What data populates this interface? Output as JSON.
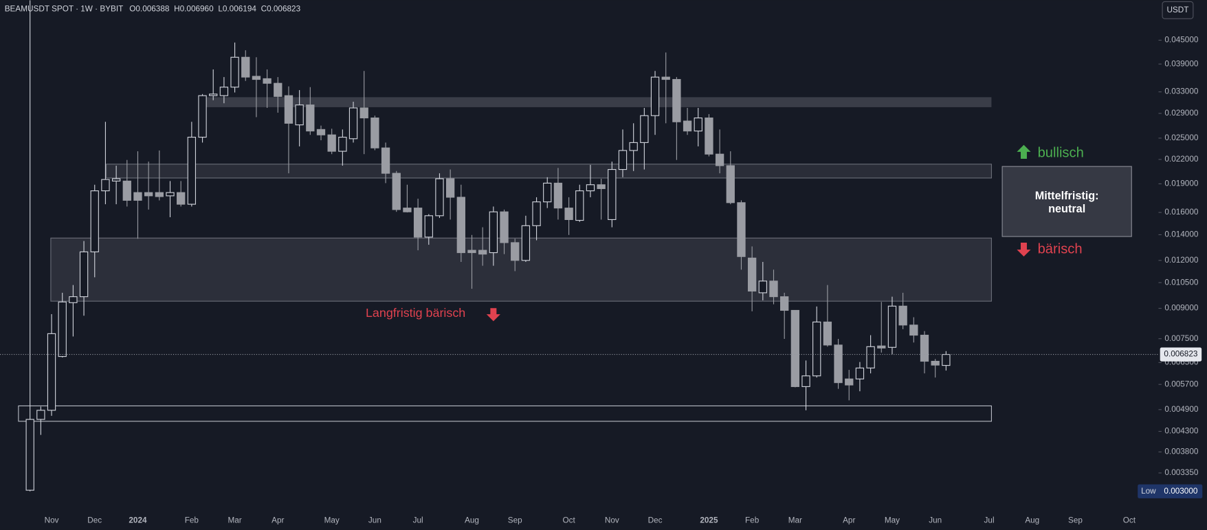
{
  "header": {
    "symbol": "BEAMUSDT SPOT · 1W · BYBIT",
    "ohlc": [
      "O0.006388",
      "H0.006960",
      "L0.006194",
      "C0.006823"
    ]
  },
  "annotations": {
    "long_term": "Langfristig bärisch",
    "bullish": "bullisch",
    "box": [
      "Mittelfristig:",
      "neutral"
    ],
    "bearish": "bärisch"
  },
  "chart_data": {
    "type": "candlestick",
    "currency": "USDT",
    "log_scale": true,
    "up_color": "#d1d4dc",
    "down_color": "#9a9ca3",
    "ylim": [
      0.002685,
      0.05722
    ],
    "yticks": [
      {
        "value": 0.045,
        "label": "0.045000"
      },
      {
        "value": 0.039,
        "label": "0.039000"
      },
      {
        "value": 0.033,
        "label": "0.033000"
      },
      {
        "value": 0.029,
        "label": "0.029000"
      },
      {
        "value": 0.025,
        "label": "0.025000"
      },
      {
        "value": 0.022,
        "label": "0.022000"
      },
      {
        "value": 0.019,
        "label": "0.019000"
      },
      {
        "value": 0.016,
        "label": "0.016000"
      },
      {
        "value": 0.014,
        "label": "0.014000"
      },
      {
        "value": 0.012,
        "label": "0.012000"
      },
      {
        "value": 0.0105,
        "label": "0.010500"
      },
      {
        "value": 0.009,
        "label": "0.009000"
      },
      {
        "value": 0.0075,
        "label": "0.007500"
      },
      {
        "value": 0.0065,
        "label": "0.006500"
      },
      {
        "value": 0.0057,
        "label": "0.005700"
      },
      {
        "value": 0.0049,
        "label": "0.004900"
      },
      {
        "value": 0.0043,
        "label": "0.004300"
      },
      {
        "value": 0.0038,
        "label": "0.003800"
      },
      {
        "value": 0.00335,
        "label": "0.003350"
      }
    ],
    "last_price": {
      "value": 0.006823,
      "label": "0.006823"
    },
    "low_marker": {
      "label": "Low",
      "value": 0.003,
      "value_label": "0.003000"
    },
    "categories": [
      null,
      null,
      "Nov",
      null,
      null,
      null,
      "Dec",
      null,
      null,
      null,
      "2024",
      null,
      null,
      null,
      null,
      "Feb",
      null,
      null,
      null,
      "Mar",
      null,
      null,
      null,
      "Apr",
      null,
      null,
      null,
      null,
      "May",
      null,
      null,
      null,
      "Jun",
      null,
      null,
      null,
      "Jul",
      null,
      null,
      null,
      null,
      "Aug",
      null,
      null,
      null,
      "Sep",
      null,
      null,
      null,
      null,
      "Oct",
      null,
      null,
      null,
      "Nov",
      null,
      null,
      null,
      "Dec",
      null,
      null,
      null,
      null,
      "2025",
      null,
      null,
      null,
      "Feb",
      null,
      null,
      null,
      "Mar",
      null,
      null,
      null,
      null,
      "Apr",
      null,
      null,
      null,
      "May",
      null,
      null,
      null,
      "Jun",
      null,
      null,
      null,
      null,
      "Jul",
      null,
      null,
      null,
      "Aug",
      null,
      null,
      null,
      "Sep",
      null,
      null,
      null,
      null,
      "Oct",
      null,
      null
    ],
    "open": [
      0.00302,
      0.00462,
      0.00488,
      0.00674,
      0.00931,
      0.00965,
      0.01263,
      0.01822,
      0.01932,
      0.01932,
      0.01803,
      0.01803,
      0.01803,
      0.01768,
      0.01803,
      0.01681,
      0.02514,
      0.03226,
      0.03226,
      0.03395,
      0.04062,
      0.03623,
      0.03572,
      0.03474,
      0.03226,
      0.02707,
      0.03051,
      0.02633,
      0.02549,
      0.0231,
      0.02491,
      0.02997,
      0.02822,
      0.02357,
      0.02024,
      0.01643,
      0.01643,
      0.0138,
      0.01569,
      0.01959,
      0.01753,
      0.01275,
      0.01275,
      0.01257,
      0.01606,
      0.01335,
      0.012,
      0.01478,
      0.01705,
      0.01908,
      0.01643,
      0.01526,
      0.01822,
      0.0189,
      0.01533,
      0.02071,
      0.02321,
      0.02434,
      0.02861,
      0.03606,
      0.03556,
      0.0277,
      0.02609,
      0.02822,
      0.02271,
      0.02119,
      0.01697,
      0.01217,
      0.00988,
      0.0106,
      0.00965,
      0.00889,
      0.005625,
      0.006,
      0.00829,
      0.00722,
      0.00589,
      0.00589,
      0.00629,
      0.00718,
      0.00712,
      0.00912,
      0.00814,
      0.00766,
      0.00655,
      0.006388,
      null,
      null,
      null,
      null,
      null,
      null,
      null,
      null,
      null,
      null,
      null,
      null,
      null,
      null,
      null,
      null,
      null,
      null,
      null
    ],
    "high": [
      0.0572,
      0.00499,
      0.00869,
      0.00988,
      0.01035,
      0.01348,
      0.0189,
      0.02757,
      0.02119,
      0.02193,
      0.0231,
      0.02171,
      0.02321,
      0.01932,
      0.01932,
      0.02757,
      0.03257,
      0.03776,
      0.03606,
      0.04438,
      0.04237,
      0.04062,
      0.03776,
      0.03606,
      0.03411,
      0.03335,
      0.03395,
      0.02695,
      0.02645,
      0.02633,
      0.0311,
      0.03741,
      0.02861,
      0.02434,
      0.02052,
      0.0189,
      0.01738,
      0.01584,
      0.02024,
      0.02071,
      0.0189,
      0.01398,
      0.01464,
      0.01658,
      0.01628,
      0.01367,
      0.01569,
      0.01753,
      0.01977,
      0.0209,
      0.01753,
      0.0189,
      0.02129,
      0.01959,
      0.02171,
      0.02633,
      0.02733,
      0.02997,
      0.03741,
      0.0418,
      0.03606,
      0.02997,
      0.02997,
      0.02887,
      0.02633,
      0.0231,
      0.01721,
      0.01305,
      0.01189,
      0.01135,
      0.00988,
      0.0089,
      0.00658,
      0.0091,
      0.01035,
      0.00749,
      0.00622,
      0.00652,
      0.00766,
      0.00935,
      0.00965,
      0.00988,
      0.00853,
      0.00785,
      0.00664,
      0.00696,
      null,
      null,
      null,
      null,
      null,
      null,
      null,
      null,
      null,
      null,
      null,
      null,
      null,
      null,
      null,
      null,
      null,
      null,
      null
    ],
    "low": [
      0.003,
      0.00421,
      0.00472,
      0.0067,
      0.0076,
      0.00861,
      0.01084,
      0.01681,
      0.01681,
      0.01658,
      0.01367,
      0.01628,
      0.0172,
      0.01555,
      0.01658,
      0.01658,
      0.02434,
      0.03139,
      0.03082,
      0.03288,
      0.03523,
      0.02835,
      0.02997,
      0.02912,
      0.02024,
      0.02379,
      0.02549,
      0.02468,
      0.02271,
      0.02119,
      0.02434,
      0.02271,
      0.02325,
      0.01908,
      0.01606,
      0.016,
      0.01275,
      0.01318,
      0.01548,
      0.01533,
      0.01189,
      0.01012,
      0.01162,
      0.01162,
      0.01246,
      0.01125,
      0.01189,
      0.01354,
      0.01643,
      0.01533,
      0.01398,
      0.01512,
      0.01753,
      0.01533,
      0.01464,
      0.01977,
      0.02052,
      0.02071,
      0.02549,
      0.02733,
      0.02193,
      0.02549,
      0.02379,
      0.0224,
      0.02024,
      0.01681,
      0.01135,
      0.00884,
      0.00944,
      0.00922,
      0.00749,
      0.0056,
      0.00488,
      0.00594,
      0.00715,
      0.00555,
      0.00518,
      0.00547,
      0.00609,
      0.0069,
      0.00683,
      0.00794,
      0.00733,
      0.00609,
      0.00594,
      0.006194,
      null,
      null,
      null,
      null,
      null,
      null,
      null,
      null,
      null,
      null,
      null,
      null,
      null,
      null,
      null,
      null,
      null,
      null,
      null
    ],
    "close": [
      0.00462,
      0.00488,
      0.00773,
      0.00935,
      0.00965,
      0.01263,
      0.01822,
      0.0195,
      0.01959,
      0.01721,
      0.01721,
      0.01768,
      0.0176,
      0.01803,
      0.01681,
      0.02514,
      0.03226,
      0.03257,
      0.03395,
      0.04062,
      0.03606,
      0.03556,
      0.03474,
      0.03211,
      0.02733,
      0.03051,
      0.02609,
      0.02549,
      0.0231,
      0.02514,
      0.02997,
      0.02822,
      0.02357,
      0.02024,
      0.01628,
      0.01606,
      0.0138,
      0.01569,
      0.01959,
      0.01753,
      0.01257,
      0.01257,
      0.01246,
      0.01606,
      0.01335,
      0.012,
      0.01478,
      0.01705,
      0.01908,
      0.01643,
      0.01533,
      0.01822,
      0.0189,
      0.01846,
      0.02071,
      0.02321,
      0.02434,
      0.02861,
      0.03606,
      0.03556,
      0.02757,
      0.02609,
      0.02822,
      0.02271,
      0.02119,
      0.01697,
      0.01228,
      0.00998,
      0.0106,
      0.00965,
      0.00889,
      0.005625,
      0.006,
      0.00829,
      0.00722,
      0.00576,
      0.00568,
      0.00629,
      0.00715,
      0.00709,
      0.00912,
      0.00814,
      0.00766,
      0.00655,
      0.0064,
      0.006823,
      null,
      null,
      null,
      null,
      null,
      null,
      null,
      null,
      null,
      null,
      null,
      null,
      null,
      null,
      null,
      null,
      null,
      null,
      null
    ]
  }
}
